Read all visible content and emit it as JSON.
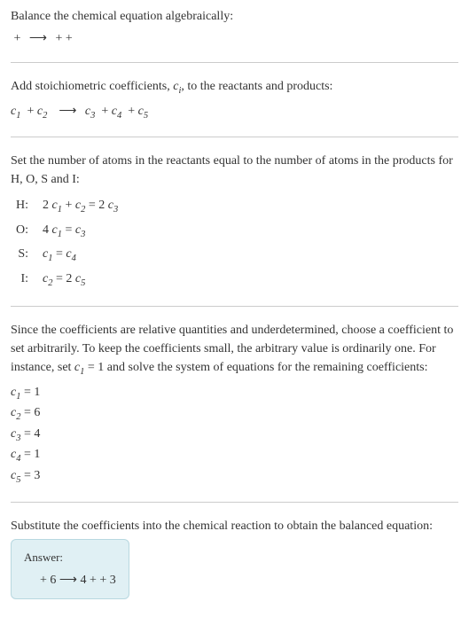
{
  "intro": {
    "line1": "Balance the chemical equation algebraically:",
    "arrow": "⟶"
  },
  "stoich": {
    "line1": "Add stoichiometric coefficients, ",
    "ci_text": "c",
    "ci_sub": "i",
    "line1_end": ", to the reactants and products:",
    "c1": "c",
    "s1": "1",
    "c2": "c",
    "s2": "2",
    "arrow": "⟶",
    "c3": "c",
    "s3": "3",
    "c4": "c",
    "s4": "4",
    "c5": "c",
    "s5": "5"
  },
  "atoms": {
    "intro": "Set the number of atoms in the reactants equal to the number of atoms in the products for H, O, S and I:",
    "rows": [
      {
        "el": "H:",
        "eq_parts": [
          "2 ",
          "c",
          "1",
          " + ",
          "c",
          "2",
          " = 2 ",
          "c",
          "3"
        ]
      },
      {
        "el": "O:",
        "eq_parts": [
          "4 ",
          "c",
          "1",
          " = ",
          "c",
          "3",
          "",
          "",
          ""
        ]
      },
      {
        "el": "S:",
        "eq_parts": [
          "",
          "c",
          "1",
          " = ",
          "c",
          "4",
          "",
          "",
          ""
        ]
      },
      {
        "el": "I:",
        "eq_parts": [
          "",
          "c",
          "2",
          " = 2 ",
          "c",
          "5",
          "",
          "",
          ""
        ]
      }
    ]
  },
  "choose": {
    "text_a": "Since the coefficients are relative quantities and underdetermined, choose a coefficient to set arbitrarily. To keep the coefficients small, the arbitrary value is ordinarily one. For instance, set ",
    "c": "c",
    "s": "1",
    "text_b": " = 1 and solve the system of equations for the remaining coefficients:"
  },
  "solved": [
    {
      "c": "c",
      "s": "1",
      "val": " = 1"
    },
    {
      "c": "c",
      "s": "2",
      "val": " = 6"
    },
    {
      "c": "c",
      "s": "3",
      "val": " = 4"
    },
    {
      "c": "c",
      "s": "4",
      "val": " = 1"
    },
    {
      "c": "c",
      "s": "5",
      "val": " = 3"
    }
  ],
  "substitute": {
    "text": "Substitute the coefficients into the chemical reaction to obtain the balanced equation:"
  },
  "answer": {
    "label": "Answer:",
    "pre1": " + 6 ",
    "arrow": "⟶",
    "post1": " 4  +  + 3 "
  },
  "colors": {
    "divider": "#cccccc",
    "answer_bg": "#e0f0f4",
    "answer_border": "#b8d8e0"
  }
}
